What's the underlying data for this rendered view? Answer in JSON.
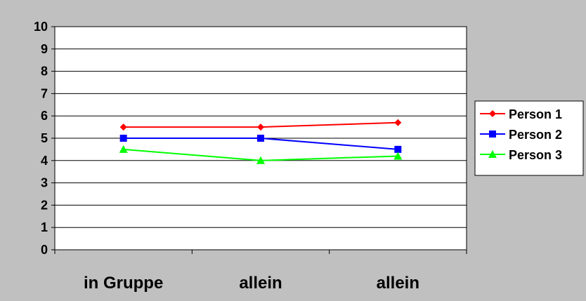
{
  "chart_data": {
    "type": "line",
    "categories": [
      "in Gruppe",
      "allein",
      "allein"
    ],
    "series": [
      {
        "name": "Person 1",
        "values": [
          5.5,
          5.5,
          5.7
        ],
        "color": "#ff0000",
        "marker": "diamond"
      },
      {
        "name": "Person 2",
        "values": [
          5.0,
          5.0,
          4.5
        ],
        "color": "#0000ff",
        "marker": "square"
      },
      {
        "name": "Person 3",
        "values": [
          4.5,
          4.0,
          4.2
        ],
        "color": "#00ff00",
        "marker": "triangle"
      }
    ],
    "ylim": [
      0,
      10
    ],
    "yticks": [
      "0",
      "1",
      "2",
      "3",
      "4",
      "5",
      "6",
      "7",
      "8",
      "9",
      "10"
    ],
    "grid": true,
    "legend_position": "right",
    "colors": {
      "background": "#c0c0c0",
      "plot_area": "#ffffff",
      "gridline": "#000000"
    }
  }
}
